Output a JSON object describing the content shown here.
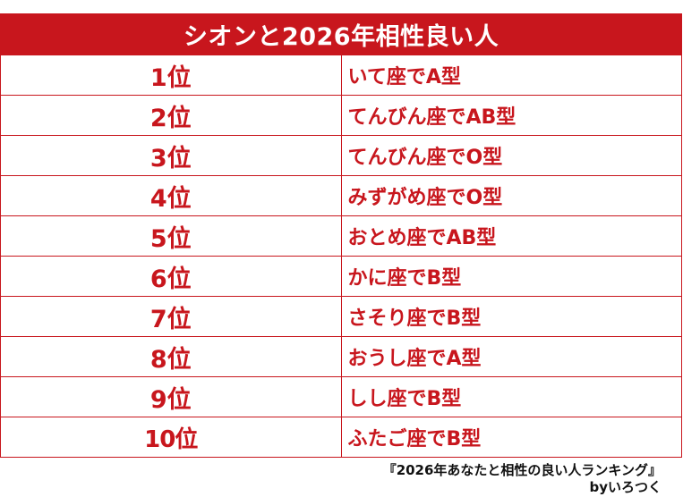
{
  "title": "シオンと2026年相性良い人",
  "rows": [
    {
      "rank": "1位",
      "label": "いて座でA型"
    },
    {
      "rank": "2位",
      "label": "てんびん座でAB型"
    },
    {
      "rank": "3位",
      "label": "てんびん座でO型"
    },
    {
      "rank": "4位",
      "label": "みずがめ座でO型"
    },
    {
      "rank": "5位",
      "label": "おとめ座でAB型"
    },
    {
      "rank": "6位",
      "label": "かに座でB型"
    },
    {
      "rank": "7位",
      "label": "さそり座でB型"
    },
    {
      "rank": "8位",
      "label": "おうし座でA型"
    },
    {
      "rank": "9位",
      "label": "しし座でB型"
    },
    {
      "rank": "10位",
      "label": "ふたご座でB型"
    }
  ],
  "footer": {
    "source": "『2026年あなたと相性の良い人ランキング』",
    "byline": "byいろつく"
  },
  "colors": {
    "accent": "#c8161d",
    "text": "#111111",
    "background": "#ffffff"
  }
}
